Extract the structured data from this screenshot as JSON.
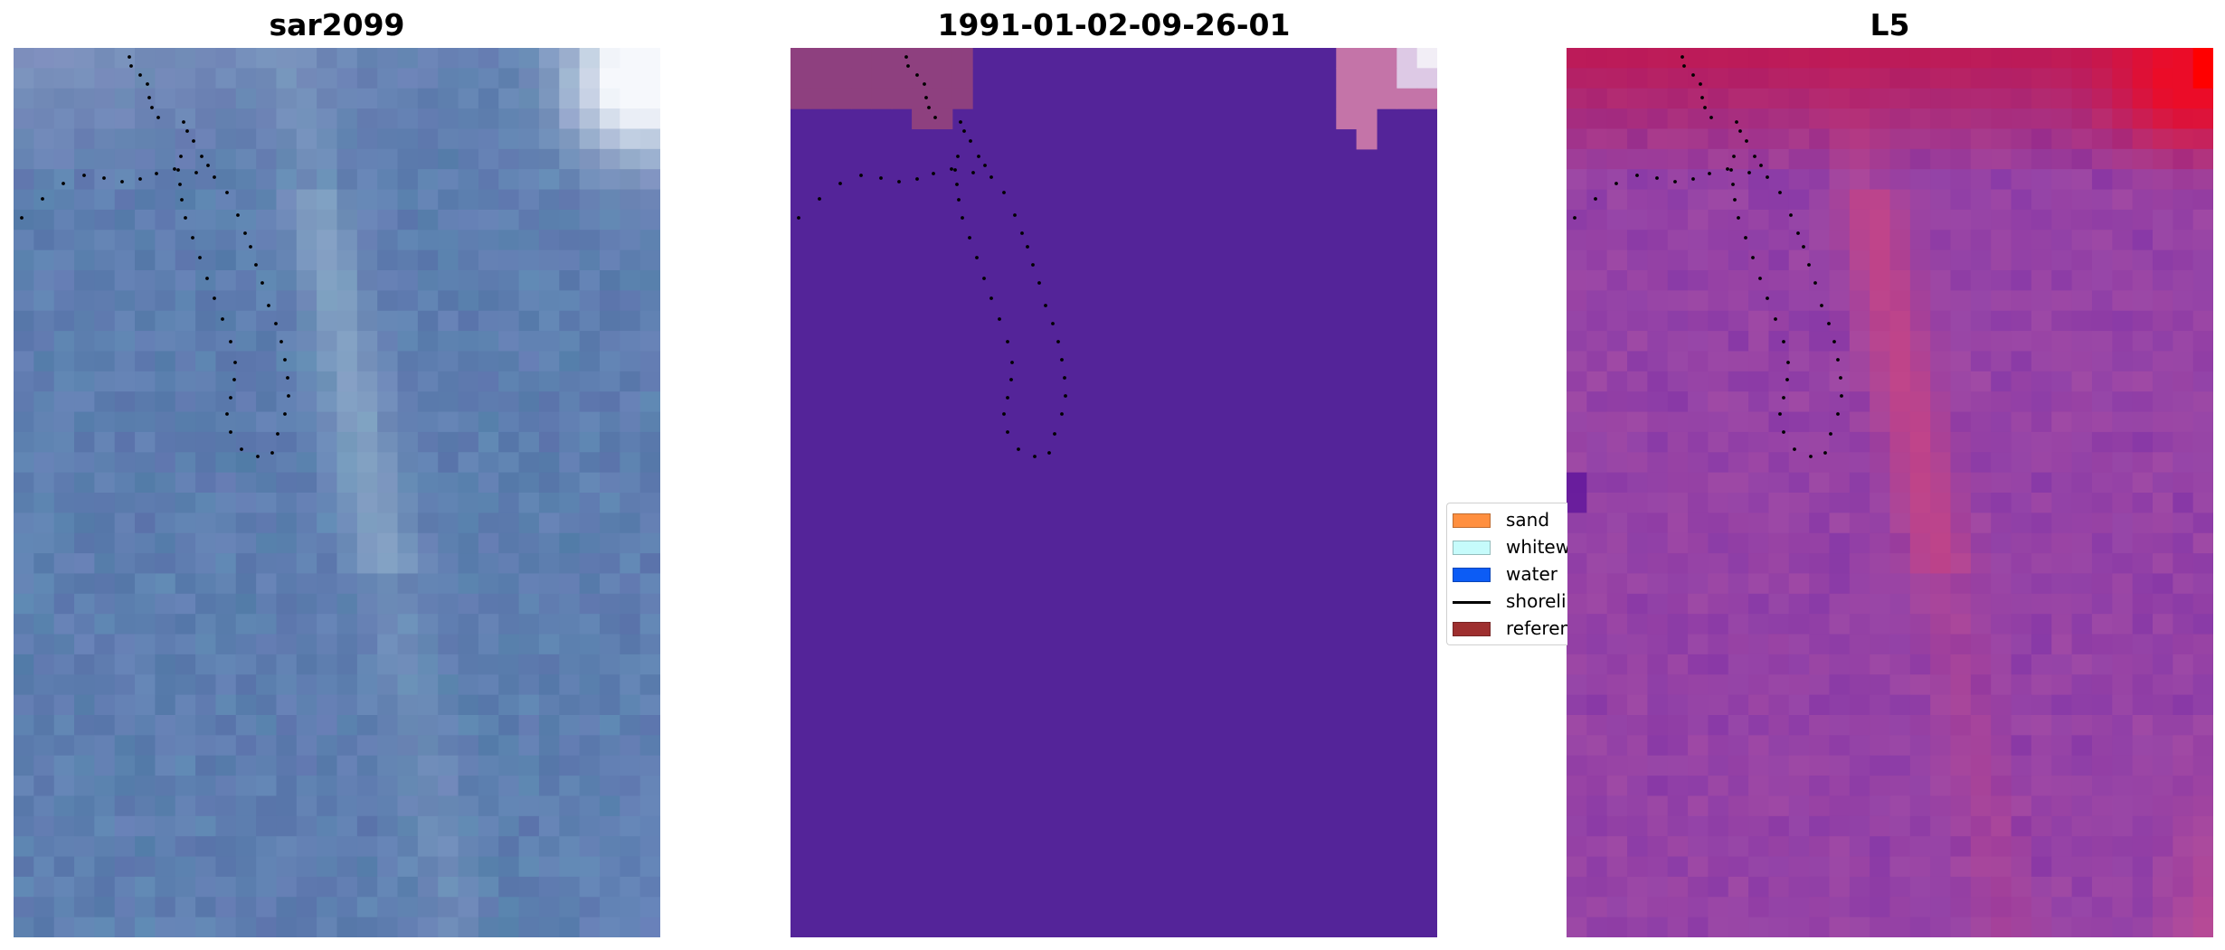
{
  "panels": [
    {
      "title": "sar2099"
    },
    {
      "title": "1991-01-02-09-26-01"
    },
    {
      "title": "L5"
    }
  ],
  "legend": {
    "items": [
      {
        "label": "sand",
        "color": "#ff8f3f",
        "kind": "patch"
      },
      {
        "label": "whitewater",
        "color": "#c6fbfb",
        "kind": "patch"
      },
      {
        "label": "water",
        "color": "#0c5cf5",
        "kind": "patch"
      },
      {
        "label": "shoreline",
        "color": "#000000",
        "kind": "line"
      },
      {
        "label": "reference",
        "color": "#9e2f2f",
        "kind": "patch"
      }
    ]
  },
  "colors": {
    "classified_background": "#542499",
    "shoreline_points": "#000000"
  }
}
